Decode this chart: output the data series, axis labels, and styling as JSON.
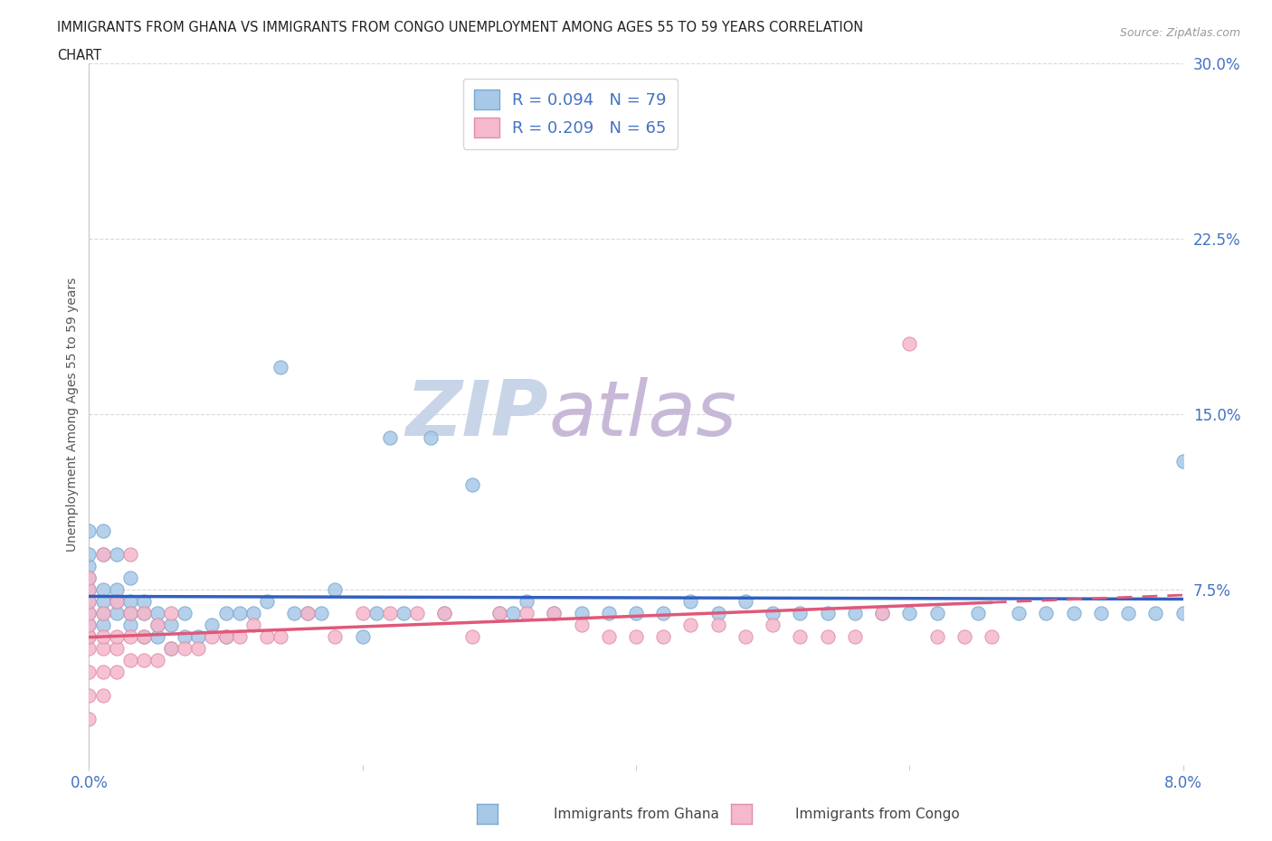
{
  "title_line1": "IMMIGRANTS FROM GHANA VS IMMIGRANTS FROM CONGO UNEMPLOYMENT AMONG AGES 55 TO 59 YEARS CORRELATION",
  "title_line2": "CHART",
  "source": "Source: ZipAtlas.com",
  "ylabel": "Unemployment Among Ages 55 to 59 years",
  "xlim": [
    0.0,
    0.08
  ],
  "ylim": [
    0.0,
    0.3
  ],
  "xticks": [
    0.0,
    0.02,
    0.04,
    0.06,
    0.08
  ],
  "xtick_labels": [
    "0.0%",
    "",
    "",
    "",
    "8.0%"
  ],
  "yticks": [
    0.0,
    0.075,
    0.15,
    0.225,
    0.3
  ],
  "ytick_labels": [
    "",
    "7.5%",
    "15.0%",
    "22.5%",
    "30.0%"
  ],
  "ghana_color": "#a8c8e8",
  "congo_color": "#f5b8cc",
  "ghana_edge_color": "#7aaad0",
  "congo_edge_color": "#e090a8",
  "ghana_line_color": "#3060c0",
  "congo_line_color": "#e05878",
  "ghana_R": 0.094,
  "ghana_N": 79,
  "congo_R": 0.209,
  "congo_N": 65,
  "watermark_zip": "ZIP",
  "watermark_atlas": "atlas",
  "watermark_color_zip": "#c8d4e8",
  "watermark_color_atlas": "#c8b8d8",
  "background_color": "#ffffff",
  "grid_color": "#d8d8d8",
  "legend_label1": "Immigrants from Ghana",
  "legend_label2": "Immigrants from Congo",
  "ghana_scatter_x": [
    0.0,
    0.0,
    0.0,
    0.0,
    0.0,
    0.0,
    0.0,
    0.0,
    0.0,
    0.001,
    0.001,
    0.001,
    0.001,
    0.001,
    0.001,
    0.002,
    0.002,
    0.002,
    0.002,
    0.003,
    0.003,
    0.003,
    0.003,
    0.004,
    0.004,
    0.004,
    0.005,
    0.005,
    0.005,
    0.006,
    0.006,
    0.007,
    0.007,
    0.008,
    0.009,
    0.01,
    0.01,
    0.011,
    0.012,
    0.013,
    0.014,
    0.015,
    0.016,
    0.017,
    0.018,
    0.02,
    0.021,
    0.022,
    0.023,
    0.025,
    0.026,
    0.028,
    0.03,
    0.031,
    0.032,
    0.034,
    0.036,
    0.038,
    0.04,
    0.042,
    0.044,
    0.046,
    0.048,
    0.05,
    0.052,
    0.054,
    0.056,
    0.058,
    0.06,
    0.062,
    0.065,
    0.068,
    0.07,
    0.072,
    0.074,
    0.076,
    0.078,
    0.08,
    0.08
  ],
  "ghana_scatter_y": [
    0.055,
    0.06,
    0.065,
    0.07,
    0.075,
    0.08,
    0.085,
    0.09,
    0.1,
    0.06,
    0.065,
    0.07,
    0.075,
    0.09,
    0.1,
    0.065,
    0.07,
    0.075,
    0.09,
    0.06,
    0.065,
    0.07,
    0.08,
    0.055,
    0.065,
    0.07,
    0.055,
    0.06,
    0.065,
    0.05,
    0.06,
    0.055,
    0.065,
    0.055,
    0.06,
    0.055,
    0.065,
    0.065,
    0.065,
    0.07,
    0.17,
    0.065,
    0.065,
    0.065,
    0.075,
    0.055,
    0.065,
    0.14,
    0.065,
    0.14,
    0.065,
    0.12,
    0.065,
    0.065,
    0.07,
    0.065,
    0.065,
    0.065,
    0.065,
    0.065,
    0.07,
    0.065,
    0.07,
    0.065,
    0.065,
    0.065,
    0.065,
    0.065,
    0.065,
    0.065,
    0.065,
    0.065,
    0.065,
    0.065,
    0.065,
    0.065,
    0.065,
    0.065,
    0.13
  ],
  "congo_scatter_x": [
    0.0,
    0.0,
    0.0,
    0.0,
    0.0,
    0.0,
    0.0,
    0.0,
    0.0,
    0.0,
    0.001,
    0.001,
    0.001,
    0.001,
    0.001,
    0.001,
    0.002,
    0.002,
    0.002,
    0.002,
    0.003,
    0.003,
    0.003,
    0.003,
    0.004,
    0.004,
    0.004,
    0.005,
    0.005,
    0.006,
    0.006,
    0.007,
    0.008,
    0.009,
    0.01,
    0.011,
    0.012,
    0.013,
    0.014,
    0.016,
    0.018,
    0.02,
    0.022,
    0.024,
    0.026,
    0.028,
    0.03,
    0.032,
    0.034,
    0.036,
    0.038,
    0.04,
    0.042,
    0.044,
    0.046,
    0.048,
    0.05,
    0.052,
    0.054,
    0.056,
    0.058,
    0.06,
    0.062,
    0.064,
    0.066
  ],
  "congo_scatter_y": [
    0.02,
    0.03,
    0.04,
    0.05,
    0.055,
    0.06,
    0.065,
    0.07,
    0.075,
    0.08,
    0.03,
    0.04,
    0.05,
    0.055,
    0.065,
    0.09,
    0.04,
    0.05,
    0.055,
    0.07,
    0.045,
    0.055,
    0.065,
    0.09,
    0.045,
    0.055,
    0.065,
    0.045,
    0.06,
    0.05,
    0.065,
    0.05,
    0.05,
    0.055,
    0.055,
    0.055,
    0.06,
    0.055,
    0.055,
    0.065,
    0.055,
    0.065,
    0.065,
    0.065,
    0.065,
    0.055,
    0.065,
    0.065,
    0.065,
    0.06,
    0.055,
    0.055,
    0.055,
    0.06,
    0.06,
    0.055,
    0.06,
    0.055,
    0.055,
    0.055,
    0.065,
    0.18,
    0.055,
    0.055,
    0.055
  ]
}
